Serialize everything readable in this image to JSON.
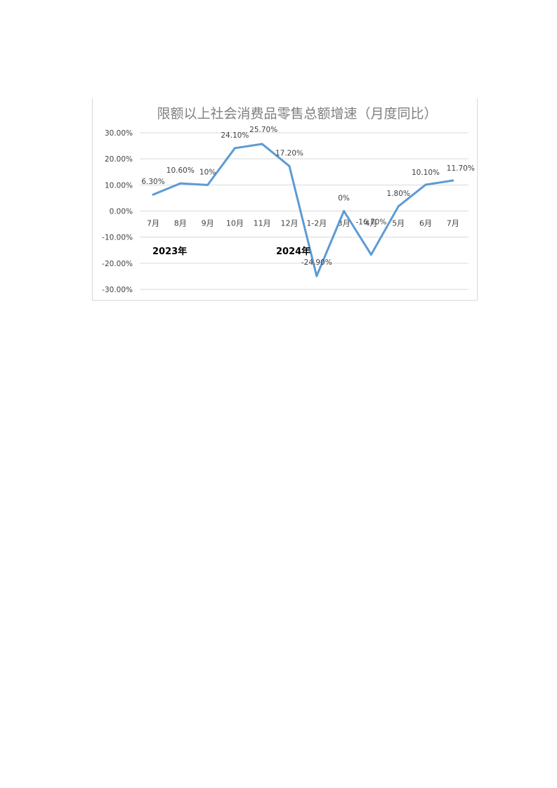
{
  "chart_data": {
    "type": "line",
    "title": "限额以上社会消费品零售总额增速（月度同比）",
    "categories": [
      "7月",
      "8月",
      "9月",
      "10月",
      "11月",
      "12月",
      "1-2月",
      "3月",
      "4月",
      "5月",
      "6月",
      "7月"
    ],
    "values": [
      6.3,
      10.6,
      10.0,
      24.1,
      25.7,
      17.2,
      -24.9,
      0.0,
      -16.7,
      1.8,
      10.1,
      11.7
    ],
    "data_labels": [
      "6.30%",
      "10.60%",
      "10%",
      "24.10%",
      "25.70%",
      "17.20%",
      "-24.90%",
      "0%",
      "-16.70%",
      "1.80%",
      "10.10%",
      "11.70%"
    ],
    "y_ticks": [
      30,
      20,
      10,
      0,
      -10,
      -20,
      -30
    ],
    "y_tick_labels": [
      "30.00%",
      "20.00%",
      "10.00%",
      "0.00%",
      "-10.00%",
      "-20.00%",
      "-30.00%"
    ],
    "ylim": [
      -30,
      30
    ],
    "annotations": [
      "2023年",
      "2024年"
    ],
    "line_color": "#5b9bd5",
    "grid": true,
    "legend": "none"
  }
}
